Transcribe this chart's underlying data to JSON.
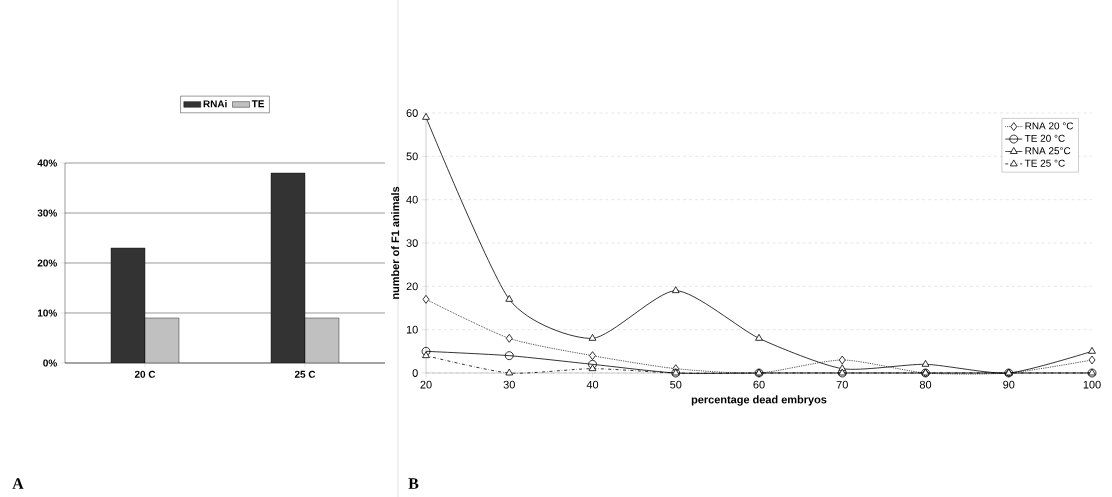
{
  "chart_data": [
    {
      "type": "bar",
      "categories": [
        "20 C",
        "25 C"
      ],
      "series": [
        {
          "name": "RNAi",
          "color": "#333333",
          "values": [
            23,
            38
          ]
        },
        {
          "name": "TE",
          "color": "#c0c0c0",
          "values": [
            9,
            9
          ]
        }
      ],
      "ylim": [
        0,
        40
      ],
      "yticks": [
        {
          "value": 0,
          "label": "0%"
        },
        {
          "value": 10,
          "label": "10%"
        },
        {
          "value": 20,
          "label": "20%"
        },
        {
          "value": 30,
          "label": "30%"
        },
        {
          "value": 40,
          "label": "40%"
        }
      ],
      "grid": "y",
      "legend": "top",
      "annotations": [
        "A"
      ]
    },
    {
      "type": "line",
      "x": [
        20,
        30,
        40,
        50,
        60,
        70,
        80,
        90,
        100
      ],
      "xlabel": "percentage dead embryos",
      "ylabel": "number of F1 animals",
      "series": [
        {
          "name": "RNA 20 °C",
          "color": "#000000",
          "marker": "diamond",
          "line_style": "dotted",
          "values": [
            17,
            8,
            4,
            1,
            0,
            3,
            0,
            0,
            3
          ]
        },
        {
          "name": "TE 20 °C",
          "color": "#000000",
          "marker": "circle",
          "line_style": "solid",
          "values": [
            5,
            4,
            2,
            0,
            0,
            0,
            0,
            0,
            0
          ]
        },
        {
          "name": "RNA 25°C",
          "color": "#000000",
          "marker": "triangle",
          "line_style": "solid",
          "values": [
            59,
            17,
            8,
            19,
            8,
            1,
            2,
            0,
            5
          ]
        },
        {
          "name": "TE 25 °C",
          "color": "#000000",
          "marker": "triangle",
          "line_style": "dashed",
          "values": [
            4,
            0,
            1,
            0,
            0,
            0,
            0,
            0,
            0
          ]
        }
      ],
      "xlim": [
        20,
        100
      ],
      "xticks": [
        20,
        30,
        40,
        50,
        60,
        70,
        80,
        90,
        100
      ],
      "ylim": [
        0,
        60
      ],
      "yticks": [
        0,
        10,
        20,
        30,
        40,
        50,
        60
      ],
      "grid": "y",
      "legend": "top right",
      "annotations": [
        "B"
      ]
    }
  ]
}
